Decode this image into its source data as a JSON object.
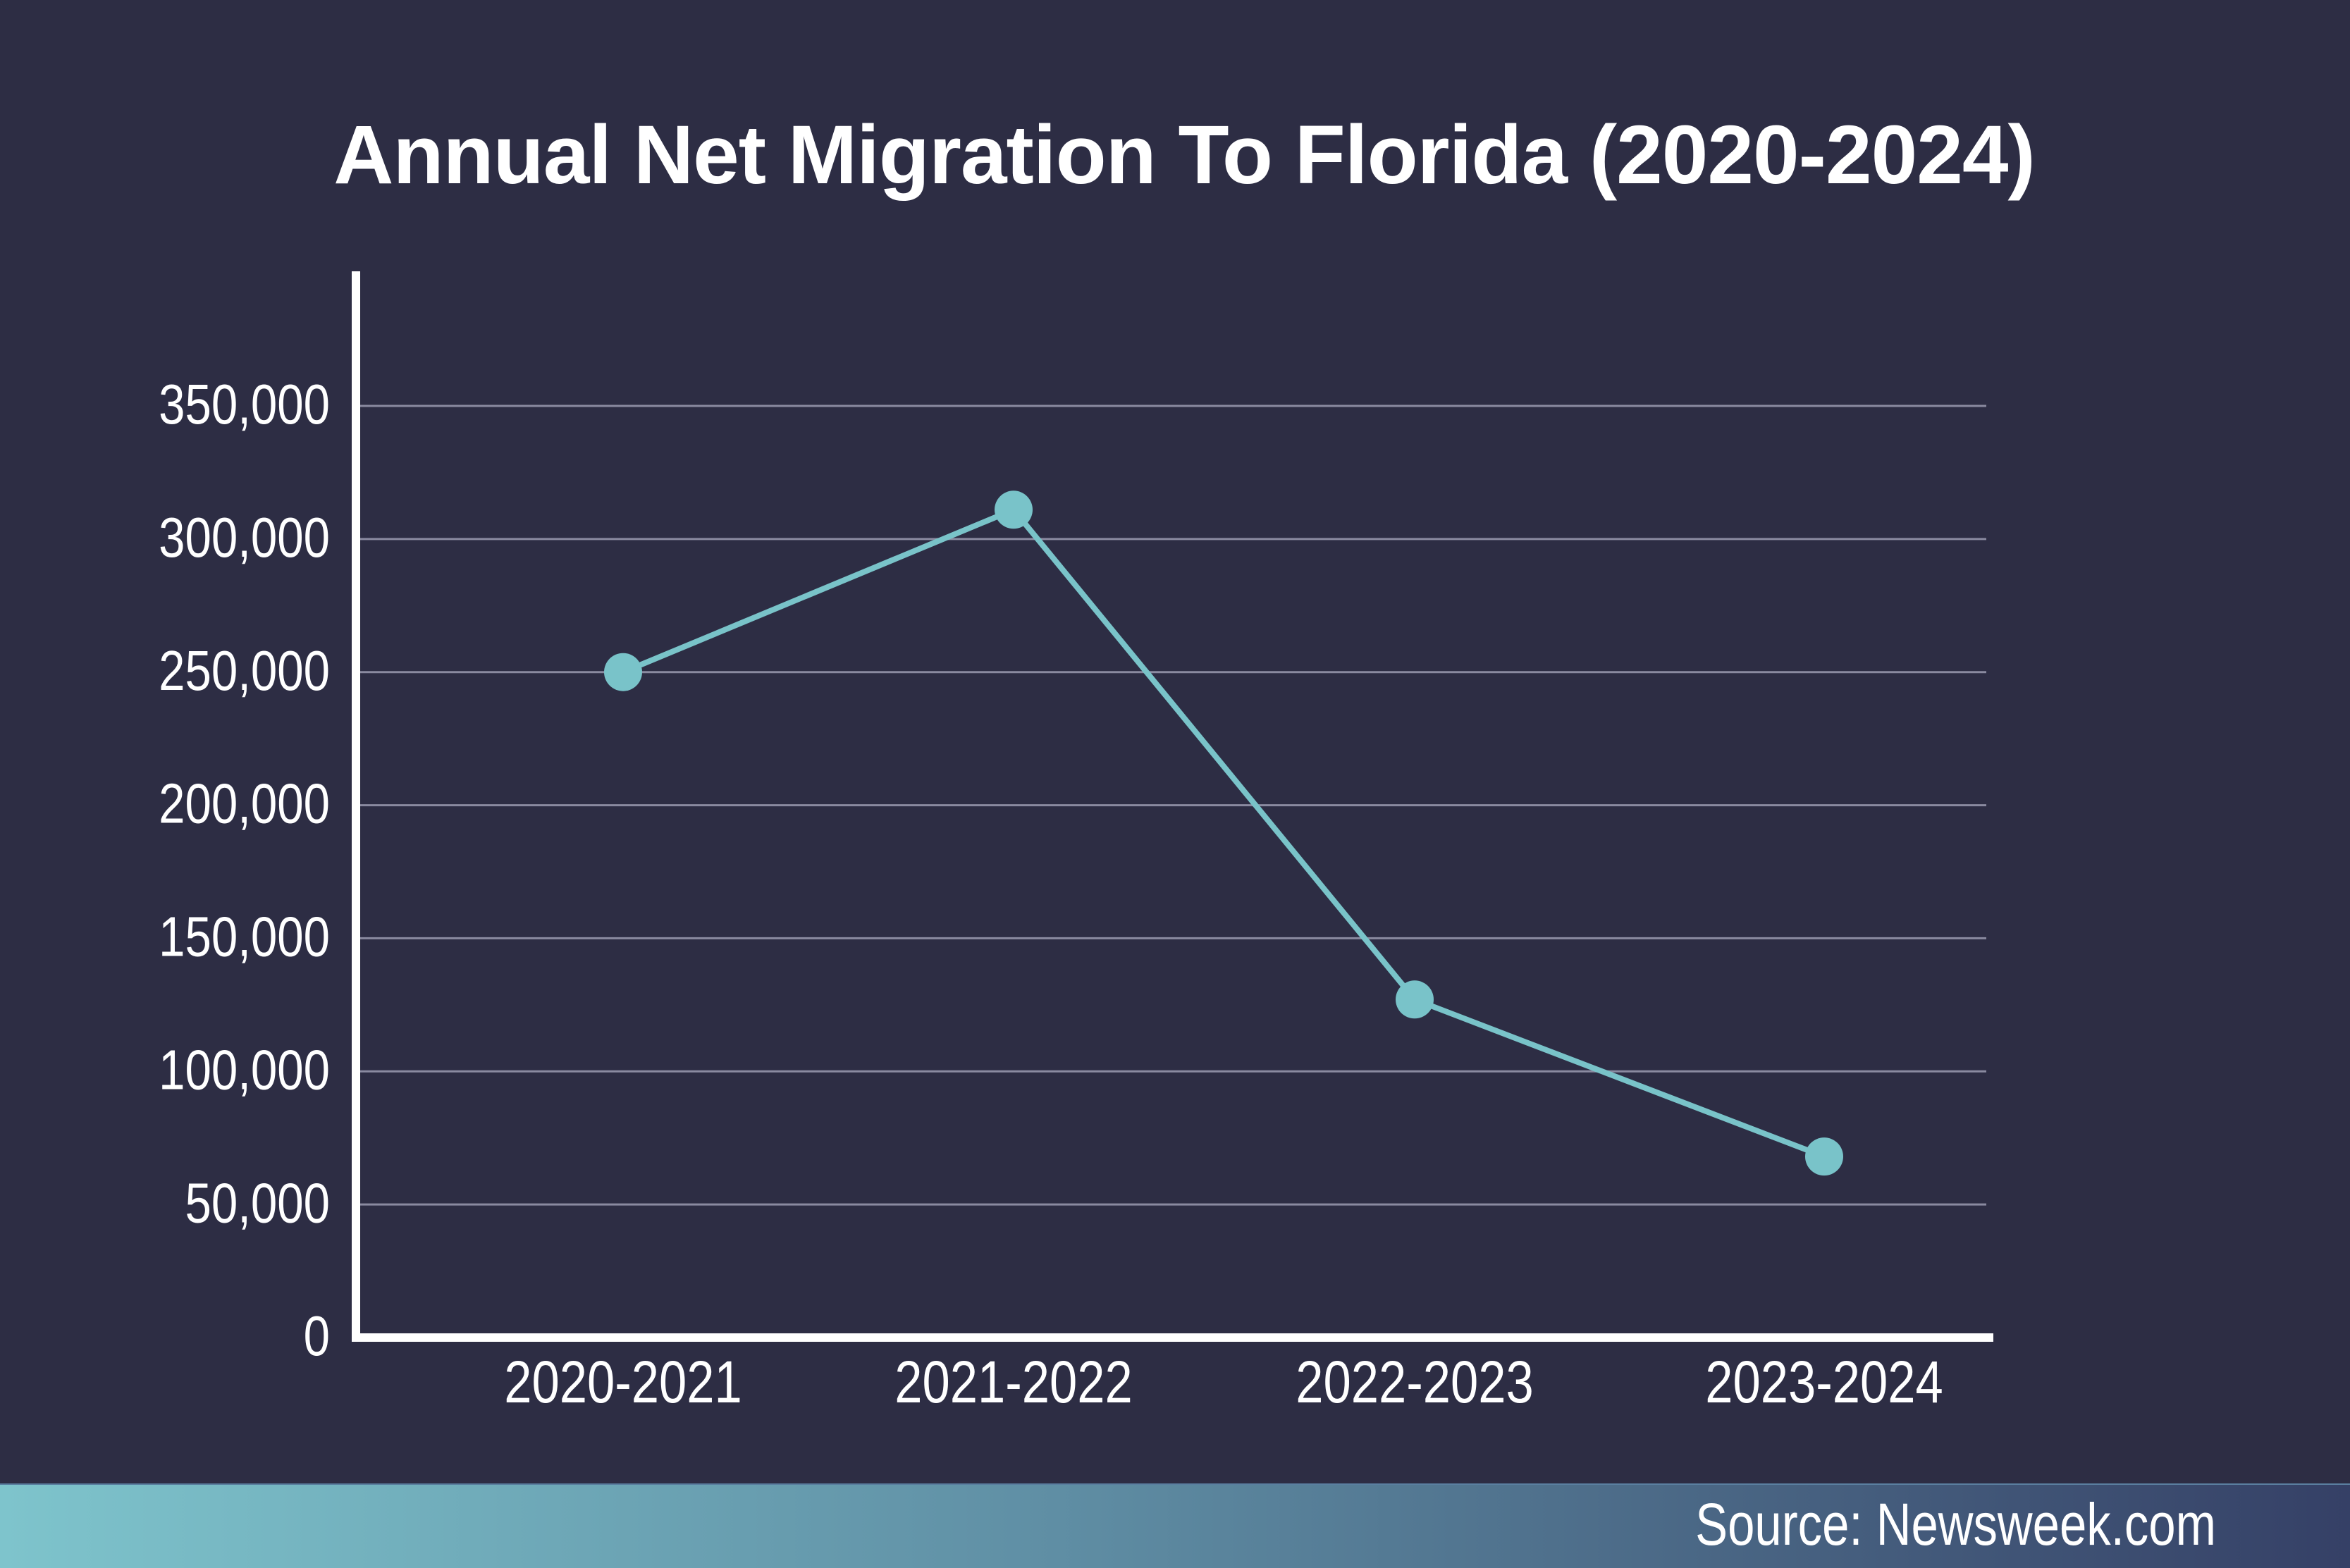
{
  "chart_data": {
    "type": "line",
    "title": "Annual Net Migration To Florida (2020-2024)",
    "categories": [
      "2020-2021",
      "2021-2022",
      "2022-2023",
      "2023-2024"
    ],
    "series": [
      {
        "values": [
          250000,
          311000,
          127000,
          68000
        ]
      }
    ],
    "yticks": [
      "0",
      "50,000",
      "100,000",
      "150,000",
      "200,000",
      "250,000",
      "300,000",
      "350,000"
    ],
    "ylim": [
      0,
      350000
    ],
    "grid": true,
    "line_color": "#79c3c9",
    "axis_color": "#ffffff",
    "grid_color": "#8a8aa0"
  },
  "source": "Source: Newsweek.com"
}
